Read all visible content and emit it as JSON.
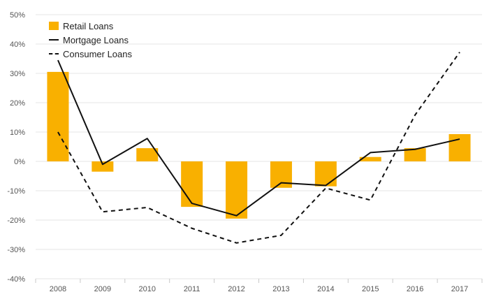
{
  "colors": {
    "bar": "#F9B000",
    "line": "#111111",
    "grid": "#E6E6E6",
    "axis_text": "#555555"
  },
  "chart_data": {
    "type": "bar",
    "categories": [
      "2008",
      "2009",
      "2010",
      "2011",
      "2012",
      "2013",
      "2014",
      "2015",
      "2016",
      "2017"
    ],
    "series": [
      {
        "name": "Retail Loans",
        "kind": "bar",
        "values": [
          30.5,
          -3.5,
          4.5,
          -15.5,
          -19.5,
          -9,
          -8.5,
          1.5,
          4.5,
          9.3
        ]
      },
      {
        "name": "Mortgage Loans",
        "kind": "line",
        "style": "solid",
        "values": [
          34.5,
          -1,
          7.8,
          -14.3,
          -18.5,
          -7.3,
          -8.2,
          3,
          4.1,
          7.6
        ]
      },
      {
        "name": "Consumer Loans",
        "kind": "line",
        "style": "dashed",
        "values": [
          10,
          -17.2,
          -15.7,
          -22.8,
          -27.8,
          -25.2,
          -9.1,
          -13.2,
          15.8,
          37.2
        ]
      }
    ],
    "yticks": [
      "-40%",
      "-30%",
      "-20%",
      "-10%",
      "0%",
      "10%",
      "20%",
      "30%",
      "40%",
      "50%"
    ],
    "ylim": [
      -40,
      50
    ],
    "title": "",
    "xlabel": "",
    "ylabel": "",
    "grid": true,
    "legend_position": "top-left"
  }
}
